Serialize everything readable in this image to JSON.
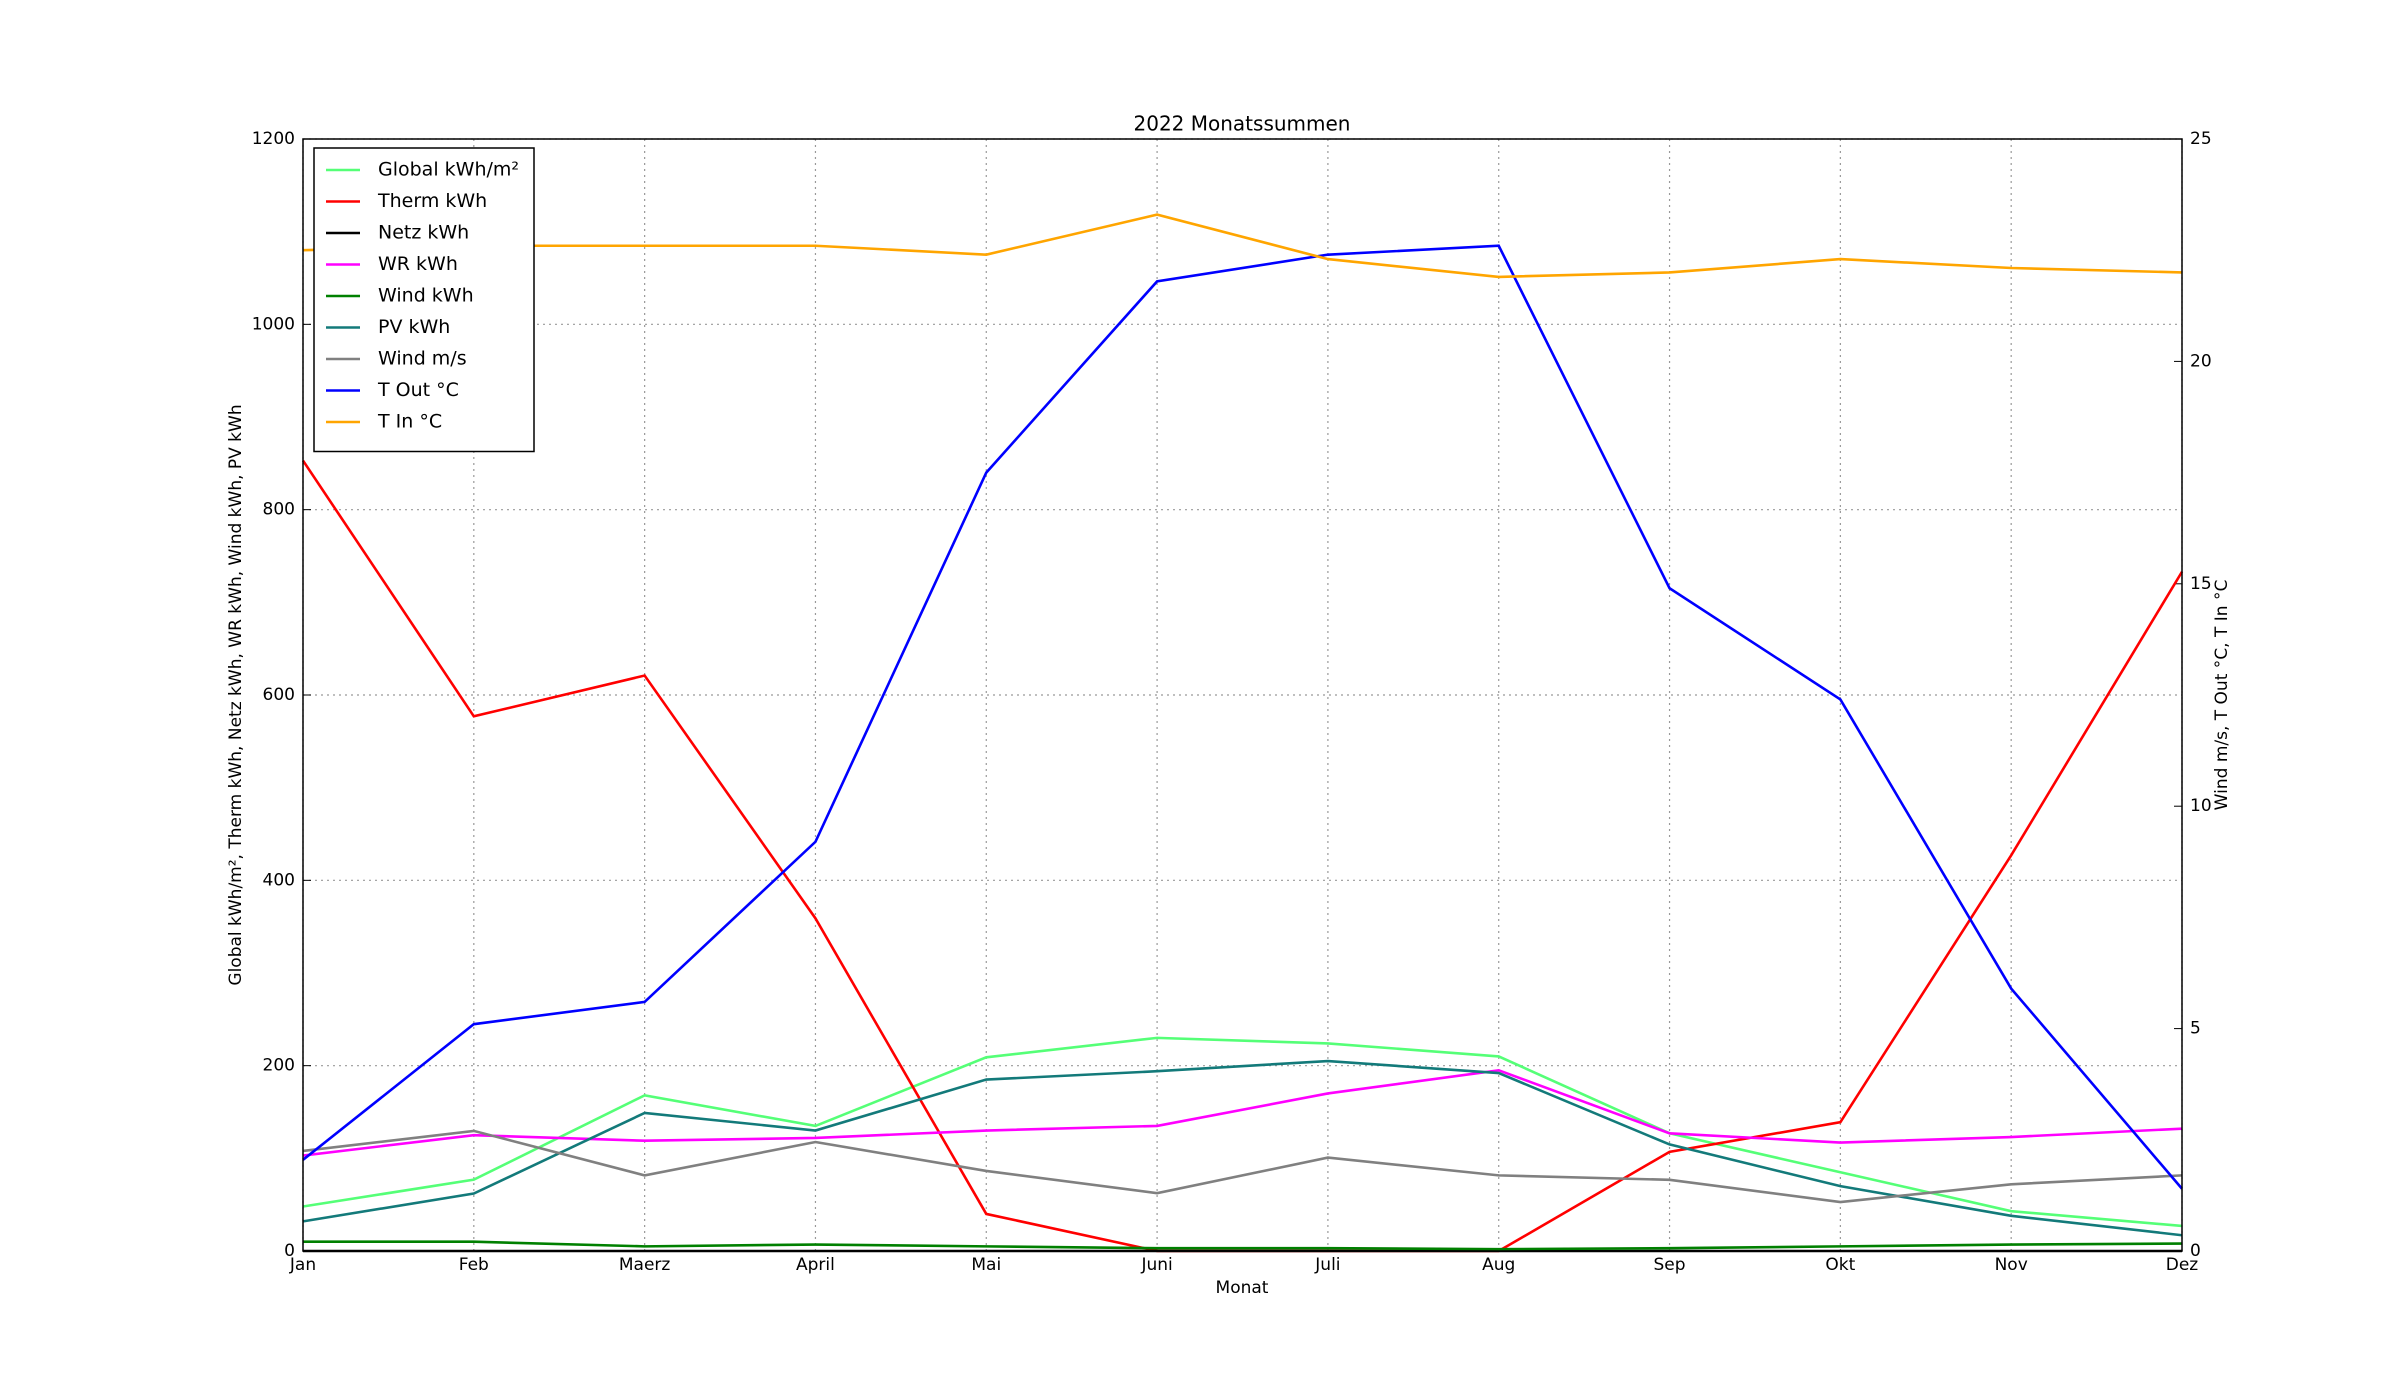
{
  "chart_data": {
    "type": "line",
    "title": "2022 Monatssummen",
    "x_label": "Monat",
    "y_label": "Global kWh/m², Therm kWh, Netz kWh, WR kWh, Wind kWh, PV kWh",
    "y2_label": "Wind m/s, T Out °C, T In °C",
    "categories": [
      "Jan",
      "Feb",
      "Maerz",
      "April",
      "Mai",
      "Juni",
      "Juli",
      "Aug",
      "Sep",
      "Okt",
      "Nov",
      "Dez"
    ],
    "ylim": [
      0,
      1200
    ],
    "yticks": [
      0,
      200,
      400,
      600,
      800,
      1000,
      1200
    ],
    "y2lim": [
      0,
      25
    ],
    "y2ticks": [
      0,
      5,
      10,
      15,
      20,
      25
    ],
    "grid": true,
    "legend": "upper left",
    "series": [
      {
        "name": "Global kWh/m²",
        "color": "#55ff77",
        "values": [
          48,
          77,
          168,
          135,
          209,
          230,
          224,
          210,
          127,
          85,
          43,
          27
        ]
      },
      {
        "name": "Therm kWh",
        "color": "#ff0000",
        "values": [
          853,
          577,
          621,
          359,
          40,
          0,
          0,
          0,
          107,
          139,
          427,
          733
        ]
      },
      {
        "name": "Netz kWh",
        "color": "#000000",
        "values": [
          0,
          0,
          0,
          0,
          0,
          0,
          0,
          0,
          0,
          0,
          0,
          0
        ]
      },
      {
        "name": "WR kWh",
        "color": "#ff00ff",
        "values": [
          103,
          125,
          119,
          122,
          130,
          135,
          170,
          195,
          127,
          117,
          123,
          132
        ]
      },
      {
        "name": "Wind kWh",
        "color": "#008000",
        "values": [
          10,
          10,
          5,
          7,
          5,
          3,
          3,
          2,
          3,
          5,
          7,
          8
        ]
      },
      {
        "name": "PV kWh",
        "color": "#137a7a",
        "values": [
          32,
          62,
          149,
          130,
          185,
          194,
          205,
          192,
          115,
          70,
          38,
          17
        ]
      },
      {
        "name": "Wind m/s",
        "color": "#808080",
        "axis": "y2",
        "values": [
          2.25,
          2.7,
          1.7,
          2.45,
          1.8,
          1.3,
          2.1,
          1.7,
          1.6,
          1.1,
          1.5,
          1.7
        ]
      },
      {
        "name": "T Out °C",
        "color": "#0000ff",
        "axis": "y2",
        "values": [
          2.05,
          5.1,
          5.6,
          9.2,
          17.5,
          21.8,
          22.4,
          22.6,
          14.9,
          12.4,
          5.9,
          1.4
        ]
      },
      {
        "name": "T In °C",
        "color": "#ffa500",
        "axis": "y2",
        "values": [
          22.5,
          22.6,
          22.6,
          22.6,
          22.4,
          23.3,
          22.3,
          21.9,
          22.0,
          22.3,
          22.1,
          22.0
        ]
      }
    ]
  }
}
